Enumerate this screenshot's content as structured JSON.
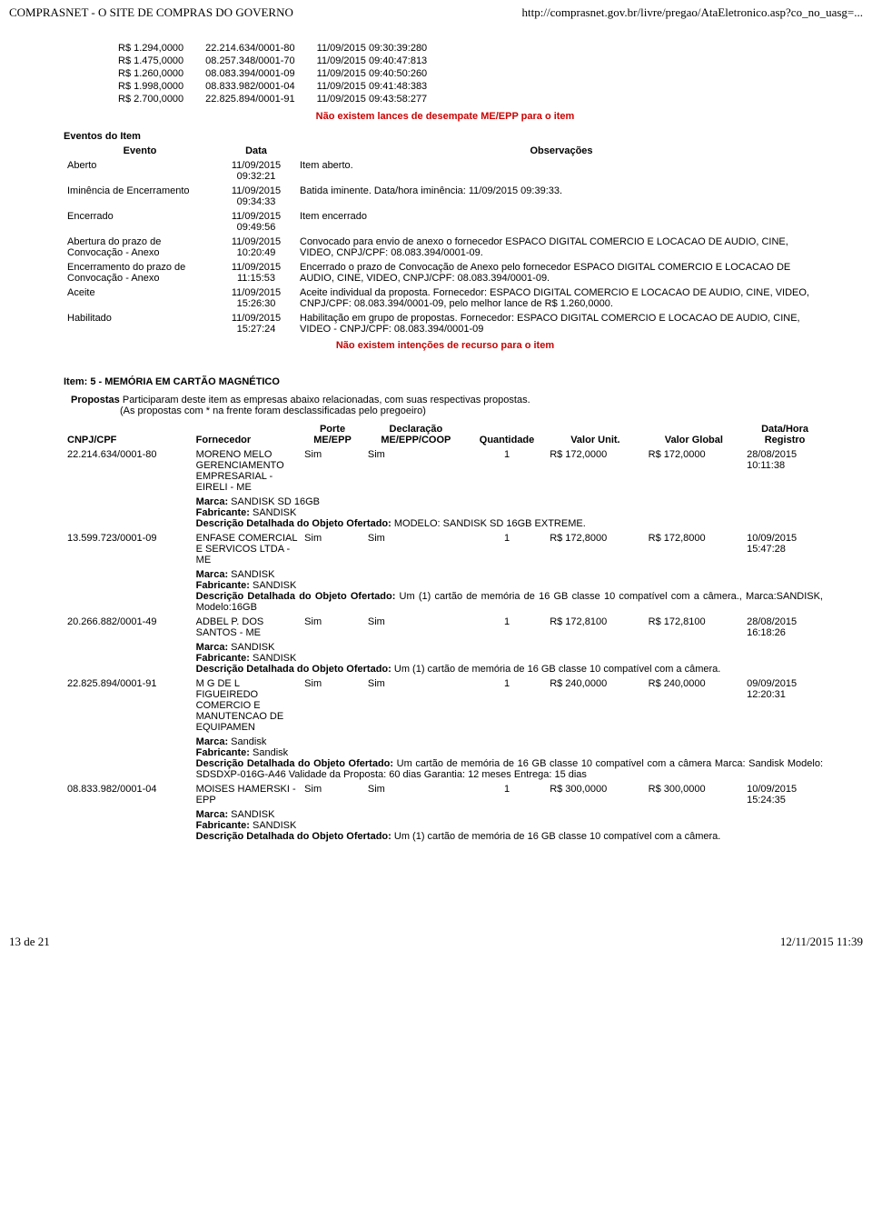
{
  "header": {
    "left": "COMPRASNET - O SITE DE COMPRAS DO GOVERNO",
    "right": "http://comprasnet.gov.br/livre/pregao/AtaEletronico.asp?co_no_uasg=..."
  },
  "bids": {
    "rows": [
      {
        "valor": "R$ 1.294,0000",
        "cnpj": "22.214.634/0001-80",
        "ts": "11/09/2015 09:30:39:280"
      },
      {
        "valor": "R$ 1.475,0000",
        "cnpj": "08.257.348/0001-70",
        "ts": "11/09/2015 09:40:47:813"
      },
      {
        "valor": "R$ 1.260,0000",
        "cnpj": "08.083.394/0001-09",
        "ts": "11/09/2015 09:40:50:260"
      },
      {
        "valor": "R$ 1.998,0000",
        "cnpj": "08.833.982/0001-04",
        "ts": "11/09/2015 09:41:48:383"
      },
      {
        "valor": "R$ 2.700,0000",
        "cnpj": "22.825.894/0001-91",
        "ts": "11/09/2015 09:43:58:277"
      }
    ]
  },
  "notice1": "Não existem lances de desempate ME/EPP para o item",
  "eventos": {
    "title": "Eventos do Item",
    "headers": {
      "ev": "Evento",
      "data": "Data",
      "obs": "Observações"
    },
    "rows": [
      {
        "ev": "Aberto",
        "data": "11/09/2015 09:32:21",
        "obs": "Item aberto."
      },
      {
        "ev": "Iminência de Encerramento",
        "data": "11/09/2015 09:34:33",
        "obs": "Batida iminente. Data/hora iminência: 11/09/2015 09:39:33."
      },
      {
        "ev": "Encerrado",
        "data": "11/09/2015 09:49:56",
        "obs": "Item encerrado"
      },
      {
        "ev": "Abertura do prazo de Convocação - Anexo",
        "data": "11/09/2015 10:20:49",
        "obs": "Convocado para envio de anexo o fornecedor ESPACO DIGITAL COMERCIO E LOCACAO DE AUDIO, CINE, VIDEO, CNPJ/CPF: 08.083.394/0001-09."
      },
      {
        "ev": "Encerramento do prazo de Convocação - Anexo",
        "data": "11/09/2015 11:15:53",
        "obs": "Encerrado o prazo de Convocação de Anexo pelo fornecedor ESPACO DIGITAL COMERCIO E LOCACAO DE AUDIO, CINE, VIDEO, CNPJ/CPF: 08.083.394/0001-09."
      },
      {
        "ev": "Aceite",
        "data": "11/09/2015 15:26:30",
        "obs": "Aceite individual da proposta. Fornecedor: ESPACO DIGITAL COMERCIO E LOCACAO DE AUDIO, CINE, VIDEO, CNPJ/CPF: 08.083.394/0001-09, pelo melhor lance de R$ 1.260,0000."
      },
      {
        "ev": "Habilitado",
        "data": "11/09/2015 15:27:24",
        "obs": "Habilitação em grupo de propostas. Fornecedor: ESPACO DIGITAL COMERCIO E LOCACAO DE AUDIO, CINE, VIDEO - CNPJ/CPF: 08.083.394/0001-09"
      }
    ]
  },
  "notice2": "Não existem intenções de recurso para o item",
  "item": {
    "title": "Item: 5 - MEMÓRIA EM CARTÃO MAGNÉTICO",
    "intro_bold": "Propostas",
    "intro1": " Participaram deste item as empresas abaixo relacionadas, com suas respectivas propostas.",
    "intro2": "(As propostas com * na frente foram desclassificadas pelo pregoeiro)"
  },
  "prop": {
    "headers": {
      "cnpj": "CNPJ/CPF",
      "forn": "Fornecedor",
      "porte": "Porte ME/EPP",
      "decl": "Declaração ME/EPP/COOP",
      "qtd": "Quantidade",
      "vu": "Valor Unit.",
      "vg": "Valor Global",
      "dh": "Data/Hora Registro"
    },
    "labels": {
      "marca": "Marca:",
      "fabricante": "Fabricante:",
      "descr": "Descrição Detalhada do Objeto Ofertado:"
    },
    "rows": [
      {
        "cnpj": "22.214.634/0001-80",
        "forn": "MORENO MELO GERENCIAMENTO EMPRESARIAL - EIRELI - ME",
        "porte": "Sim",
        "decl": "Sim",
        "qtd": "1",
        "vu": "R$ 172,0000",
        "vg": "R$ 172,0000",
        "dh": "28/08/2015 10:11:38",
        "marca": " SANDISK SD 16GB",
        "fabricante": " SANDISK",
        "descr": " MODELO: SANDISK SD 16GB EXTREME."
      },
      {
        "cnpj": "13.599.723/0001-09",
        "forn": "ENFASE COMERCIAL E SERVICOS LTDA - ME",
        "porte": "Sim",
        "decl": "Sim",
        "qtd": "1",
        "vu": "R$ 172,8000",
        "vg": "R$ 172,8000",
        "dh": "10/09/2015 15:47:28",
        "marca": " SANDISK",
        "fabricante": " SANDISK",
        "descr": " Um (1) cartão de memória de 16 GB classe 10 compatível com a câmera., Marca:SANDISK, Modelo:16GB"
      },
      {
        "cnpj": "20.266.882/0001-49",
        "forn": "ADBEL P. DOS SANTOS - ME",
        "porte": "Sim",
        "decl": "Sim",
        "qtd": "1",
        "vu": "R$ 172,8100",
        "vg": "R$ 172,8100",
        "dh": "28/08/2015 16:18:26",
        "marca": " SANDISK",
        "fabricante": " SANDISK",
        "descr": " Um (1) cartão de memória de 16 GB classe 10 compatível com a câmera."
      },
      {
        "cnpj": "22.825.894/0001-91",
        "forn": "M G DE L FIGUEIREDO COMERCIO E MANUTENCAO DE EQUIPAMEN",
        "porte": "Sim",
        "decl": "Sim",
        "qtd": "1",
        "vu": "R$ 240,0000",
        "vg": "R$ 240,0000",
        "dh": "09/09/2015 12:20:31",
        "marca": " Sandisk",
        "fabricante": " Sandisk",
        "descr": " Um cartão de memória de 16 GB classe 10 compatível com a câmera Marca: Sandisk Modelo: SDSDXP-016G-A46 Validade da Proposta: 60 dias Garantia: 12 meses Entrega: 15 dias"
      },
      {
        "cnpj": "08.833.982/0001-04",
        "forn": "MOISES HAMERSKI - EPP",
        "porte": "Sim",
        "decl": "Sim",
        "qtd": "1",
        "vu": "R$ 300,0000",
        "vg": "R$ 300,0000",
        "dh": "10/09/2015 15:24:35",
        "marca": " SANDISK",
        "fabricante": " SANDISK",
        "descr": " Um (1) cartão de memória de 16 GB classe 10 compatível com a câmera."
      }
    ]
  },
  "footer": {
    "left": "13 de 21",
    "right": "12/11/2015 11:39"
  }
}
